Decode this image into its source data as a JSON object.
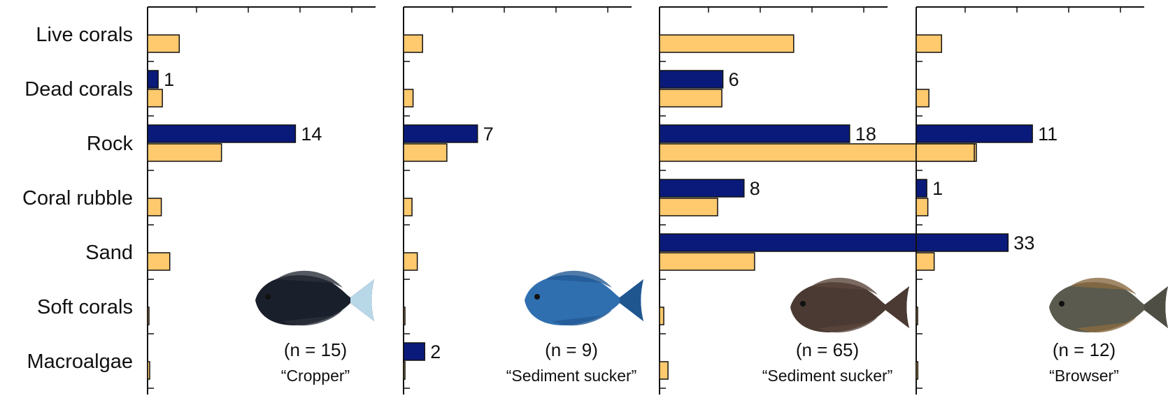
{
  "chart_data": {
    "type": "bar",
    "orientation": "horizontal",
    "categories": [
      "Live corals",
      "Dead corals",
      "Rock",
      "Coral rubble",
      "Sand",
      "Soft corals",
      "Macroalgae"
    ],
    "colors": {
      "observed": "#0a1a7a",
      "available": "#ffc96e",
      "outline": "#111111"
    },
    "x_scale_max": 20,
    "panels": [
      {
        "n_label": "(n = 15)",
        "guild": "“Cropper”",
        "fish_icon": "dark-surgeonfish-yellow-tail-icon",
        "observed": [
          0,
          1,
          14,
          0,
          0,
          0,
          0
        ],
        "available": [
          3,
          1.4,
          7,
          1.3,
          2.1,
          0.1,
          0.2
        ]
      },
      {
        "n_label": "(n = 9)",
        "guild": "“Sediment sucker”",
        "fish_icon": "blue-surgeonfish-icon",
        "observed": [
          0,
          0,
          7,
          0,
          0,
          0,
          2
        ],
        "available": [
          1.8,
          0.9,
          4.1,
          0.8,
          1.3,
          0.05,
          0.1
        ]
      },
      {
        "n_label": "(n = 65)",
        "guild": "“Sediment sucker”",
        "fish_icon": "brown-surgeonfish-icon",
        "observed": [
          0,
          6,
          18,
          8,
          33,
          0,
          0
        ],
        "available": [
          12.7,
          5.9,
          30,
          5.5,
          9,
          0.4,
          0.8
        ]
      },
      {
        "n_label": "(n = 12)",
        "guild": "“Browser”",
        "fish_icon": "unicornfish-icon",
        "observed": [
          0,
          0,
          11,
          1,
          0,
          0,
          0
        ],
        "available": [
          2.4,
          1.2,
          5.5,
          1.1,
          1.7,
          0.05,
          0.15
        ]
      }
    ],
    "grid": false,
    "legend": "none"
  }
}
